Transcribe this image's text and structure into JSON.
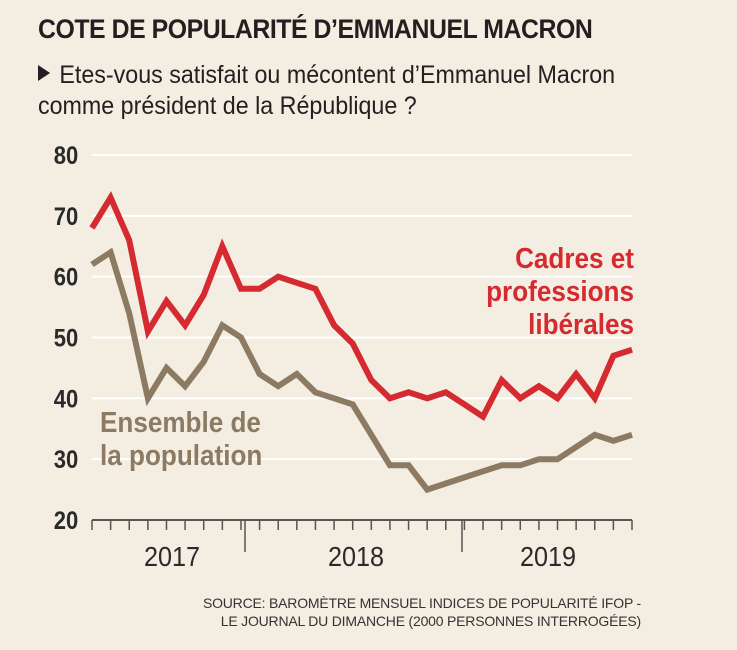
{
  "title": "COTE DE POPULARITÉ D’EMMANUEL MACRON",
  "subtitle": "Etes-vous satisfait ou mécontent d’Emmanuel Macron comme président de la République ?",
  "source_line1": "SOURCE: BAROMÈTRE MENSUEL INDICES DE POPULARITÉ IFOP -",
  "source_line2": "LE JOURNAL DU DIMANCHE (2000 PERSONNES INTERROGÉES)",
  "colors": {
    "cadres": "#d42a30",
    "ensemble": "#8c7b62",
    "grid": "#ffffff",
    "background": "#f4ede2"
  },
  "chart_data": {
    "type": "line",
    "title": "COTE DE POPULARITÉ D’EMMANUEL MACRON",
    "ylim": [
      20,
      80
    ],
    "yticks": [
      20,
      30,
      40,
      50,
      60,
      70,
      80
    ],
    "grid": true,
    "x_labels": [
      "2017",
      "2018",
      "2019"
    ],
    "x_count": 30,
    "series": [
      {
        "name": "Cadres et professions libérales",
        "label_lines": [
          "Cadres et",
          "professions",
          "libérales"
        ],
        "values": [
          68,
          73,
          66,
          51,
          56,
          52,
          57,
          65,
          58,
          58,
          60,
          59,
          58,
          52,
          49,
          43,
          40,
          41,
          40,
          41,
          39,
          37,
          43,
          40,
          42,
          40,
          44,
          40,
          47,
          48
        ]
      },
      {
        "name": "Ensemble de la population",
        "label_lines": [
          "Ensemble de",
          "la population"
        ],
        "values": [
          62,
          64,
          54,
          40,
          45,
          42,
          46,
          52,
          50,
          44,
          42,
          44,
          41,
          40,
          39,
          34,
          29,
          29,
          25,
          26,
          27,
          28,
          29,
          29,
          30,
          30,
          32,
          34,
          33,
          34
        ]
      }
    ]
  }
}
